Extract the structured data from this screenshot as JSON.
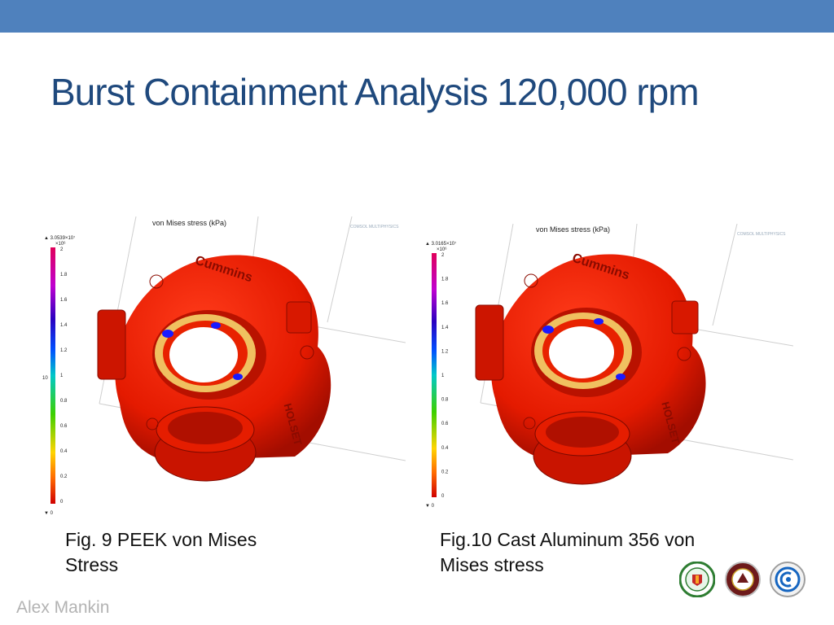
{
  "slide": {
    "title": "Burst Containment Analysis 120,000 rpm",
    "author": "Alex Mankin",
    "accent_color": "#4f81bd",
    "title_color": "#1f497d"
  },
  "figures": [
    {
      "plot_title": "von Mises stress (kPa)",
      "max_label": "▲ 3.0539×10⁷",
      "scale_factor": "×10⁶",
      "ticks": [
        "2",
        "1.8",
        "1.6",
        "1.4",
        "1.2",
        "1",
        "0.8",
        "0.6",
        "0.4",
        "0.2",
        "0"
      ],
      "min_label": "▼ 0",
      "caption_line1": "Fig. 9 PEEK von Mises",
      "caption_line2": "Stress",
      "logo_text": "COMSOL MULTIPHYSICS",
      "brand_text": "Cummins",
      "housing_text": "HOLSET"
    },
    {
      "plot_title": "von Mises stress (kPa)",
      "max_label": "▲ 3.0165×10⁷",
      "scale_factor": "×10⁶",
      "ticks": [
        "2",
        "1.8",
        "1.6",
        "1.4",
        "1.2",
        "1",
        "0.8",
        "0.6",
        "0.4",
        "0.2",
        "0"
      ],
      "min_label": "▼ 0",
      "caption_line1": "Fig.10 Cast Aluminum 356 von",
      "caption_line2": "Mises stress",
      "logo_text": "COMSOL MULTIPHYSICS",
      "brand_text": "Cummins",
      "housing_text": "HOLSET"
    }
  ],
  "logos": [
    {
      "icon": "university-seal-green"
    },
    {
      "icon": "university-seal-maroon"
    },
    {
      "icon": "engineering-seal-blue"
    }
  ]
}
